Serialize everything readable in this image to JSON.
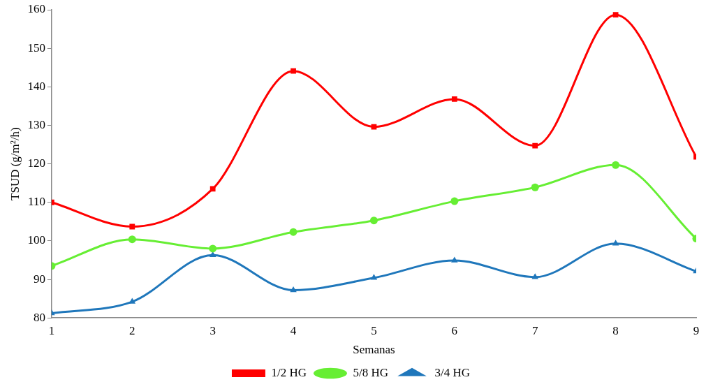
{
  "chart_data": {
    "type": "line",
    "xlabel": "Semanas",
    "ylabel": "TSUD (g/m²/h)",
    "x": [
      1,
      2,
      3,
      4,
      5,
      6,
      7,
      8,
      9
    ],
    "xlim": [
      1,
      9
    ],
    "xticks": [
      1,
      2,
      3,
      4,
      5,
      6,
      7,
      8,
      9
    ],
    "ylim": [
      80,
      160
    ],
    "yticks": [
      80,
      90,
      100,
      110,
      120,
      130,
      140,
      150,
      160
    ],
    "grid": false,
    "legend": "bottom",
    "line_style": "solid",
    "series": [
      {
        "name": "1/2 HG",
        "color": "#ff0000",
        "marker": "square",
        "values": [
          110,
          103.7,
          113.5,
          144.1,
          129.6,
          136.8,
          124.7,
          158.7,
          121.8
        ]
      },
      {
        "name": "5/8 HG",
        "color": "#66ee33",
        "marker": "circle",
        "values": [
          93.5,
          100.4,
          98,
          102.3,
          105.3,
          110.3,
          113.9,
          119.7,
          100.6
        ]
      },
      {
        "name": "3/4 HG",
        "color": "#1f77bb",
        "marker": "triangle",
        "values": [
          81.2,
          84.2,
          96.3,
          87.2,
          90.4,
          94.9,
          90.6,
          99.3,
          92.1
        ]
      }
    ]
  }
}
